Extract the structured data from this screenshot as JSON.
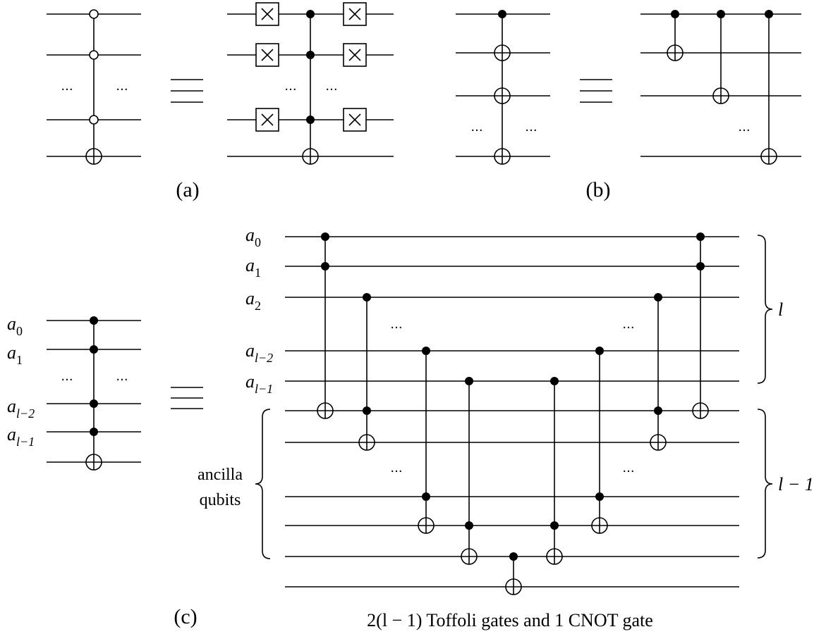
{
  "panels": {
    "a": {
      "caption": "(a)",
      "ellipsis": "..."
    },
    "b": {
      "caption": "(b)",
      "ellipsis": "..."
    },
    "c": {
      "caption": "(c)",
      "ellipsis": "...",
      "qubit_labels": [
        {
          "base": "a",
          "sub": "0"
        },
        {
          "base": "a",
          "sub": "1"
        },
        {
          "base": "a",
          "sub": "2"
        },
        {
          "base": "a",
          "sub": "l−2"
        },
        {
          "base": "a",
          "sub": "l−1"
        }
      ],
      "left_labels": [
        {
          "base": "a",
          "sub": "0"
        },
        {
          "base": "a",
          "sub": "1"
        },
        {
          "base": "a",
          "sub": "l−2"
        },
        {
          "base": "a",
          "sub": "l−1"
        }
      ],
      "ancilla_label_line1": "ancilla",
      "ancilla_label_line2": "qubits",
      "brace_top_label": "l",
      "brace_bottom_label": "l − 1",
      "bottom_caption": "2(l − 1) Toffoli gates and 1 CNOT gate"
    }
  },
  "equivalence_symbol": "≡"
}
